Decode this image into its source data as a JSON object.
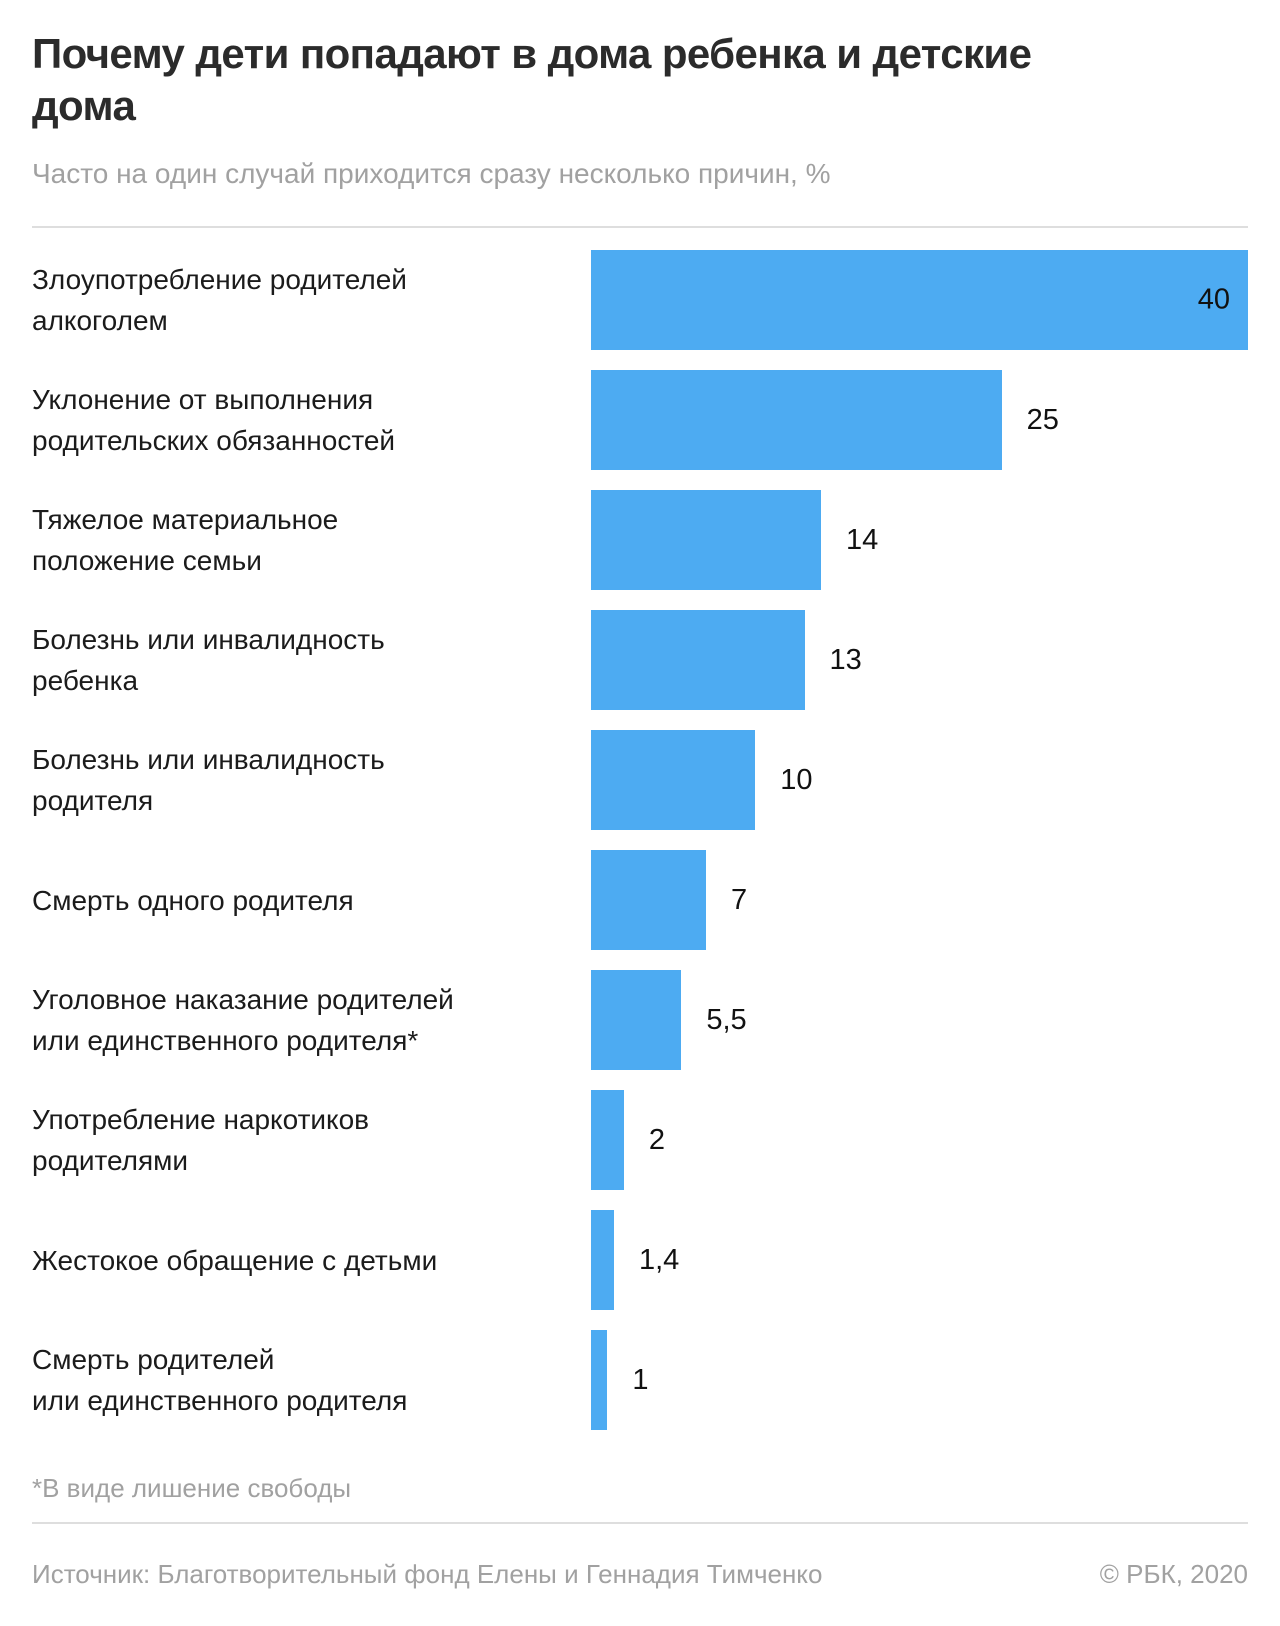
{
  "header": {
    "title": "Почему дети попадают в дома ребенка и детские дома",
    "title_lines": [
      "Почему дети попадают в дома ребенка и детские",
      "дома"
    ],
    "subtitle": "Часто на один случай приходится сразу несколько причин, %"
  },
  "chart_data": {
    "type": "bar",
    "orientation": "horizontal",
    "unit": "%",
    "xmax": 40,
    "bar_color": "#4dabf2",
    "grid": false,
    "legend": false,
    "categories": [
      "Злоупотребление родителей алкоголем",
      "Уклонение от выполнения родительских обязанностей",
      "Тяжелое материальное положение семьи",
      "Болезнь или инвалидность ребенка",
      "Болезнь или инвалидность родителя",
      "Смерть одного родителя",
      "Уголовное наказание родителей или единственного родителя*",
      "Употребление наркотиков родителями",
      "Жестокое обращение с детьми",
      "Смерть родителей или единственного родителя"
    ],
    "values": [
      40,
      25,
      14,
      13,
      10,
      7,
      5.5,
      2,
      1.4,
      1
    ],
    "rows": [
      {
        "label_lines": [
          "Злоупотребление родителей",
          "алкоголем"
        ],
        "value": 40,
        "value_label": "40",
        "value_inside": true
      },
      {
        "label_lines": [
          "Уклонение от выполнения",
          "родительских обязанностей"
        ],
        "value": 25,
        "value_label": "25",
        "value_inside": false
      },
      {
        "label_lines": [
          "Тяжелое материальное",
          "положение семьи"
        ],
        "value": 14,
        "value_label": "14",
        "value_inside": false
      },
      {
        "label_lines": [
          "Болезнь или инвалидность",
          "ребенка"
        ],
        "value": 13,
        "value_label": "13",
        "value_inside": false
      },
      {
        "label_lines": [
          "Болезнь или инвалидность",
          "родителя"
        ],
        "value": 10,
        "value_label": "10",
        "value_inside": false
      },
      {
        "label_lines": [
          "Смерть одного родителя"
        ],
        "value": 7,
        "value_label": "7",
        "value_inside": false
      },
      {
        "label_lines": [
          "Уголовное наказание родителей",
          "или единственного родителя*"
        ],
        "value": 5.5,
        "value_label": "5,5",
        "value_inside": false
      },
      {
        "label_lines": [
          "Употребление наркотиков",
          "родителями"
        ],
        "value": 2,
        "value_label": "2",
        "value_inside": false
      },
      {
        "label_lines": [
          "Жестокое обращение с детьми"
        ],
        "value": 1.4,
        "value_label": "1,4",
        "value_inside": false
      },
      {
        "label_lines": [
          "Смерть родителей",
          "или единственного родителя"
        ],
        "value": 1,
        "value_label": "1",
        "value_inside": false
      }
    ]
  },
  "footnote": "*В виде лишение свободы",
  "footer": {
    "source": "Источник: Благотворительный фонд Елены и Геннадия Тимченко",
    "copyright": "© РБК, 2020"
  }
}
